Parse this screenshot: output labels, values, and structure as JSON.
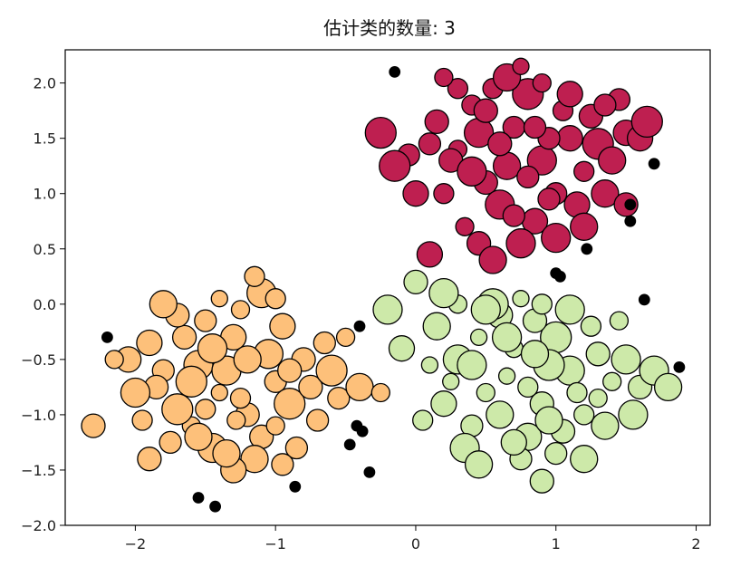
{
  "chart_data": {
    "type": "scatter",
    "title": "估计类的数量: 3",
    "xlabel": "",
    "ylabel": "",
    "xlim": [
      -2.5,
      2.1
    ],
    "ylim": [
      -2.0,
      2.3
    ],
    "x_ticks": [
      -2,
      -1,
      0,
      1,
      2
    ],
    "x_tick_labels": [
      "−2",
      "−1",
      "0",
      "1",
      "2"
    ],
    "y_ticks": [
      -2.0,
      -1.5,
      -1.0,
      -0.5,
      0.0,
      0.5,
      1.0,
      1.5,
      2.0
    ],
    "y_tick_labels": [
      "−2.0",
      "−1.5",
      "−1.0",
      "−0.5",
      "0.0",
      "0.5",
      "1.0",
      "1.5",
      "2.0"
    ],
    "grid": false,
    "legend": "none",
    "series": [
      {
        "color": "#fdc07a",
        "points": [
          [
            -1.55,
            -0.55
          ],
          [
            -1.4,
            -0.8
          ],
          [
            -1.2,
            -1.0
          ],
          [
            -1.0,
            -0.7
          ],
          [
            -0.8,
            -0.5
          ],
          [
            -1.3,
            -0.3
          ],
          [
            -1.6,
            -1.1
          ],
          [
            -1.8,
            -0.6
          ],
          [
            -1.1,
            -1.2
          ],
          [
            -0.9,
            -0.9
          ],
          [
            -1.45,
            -1.3
          ],
          [
            -1.25,
            -0.05
          ],
          [
            -1.7,
            -0.95
          ],
          [
            -1.05,
            -0.45
          ],
          [
            -0.75,
            -0.75
          ],
          [
            -1.35,
            -0.6
          ],
          [
            -1.5,
            -0.15
          ],
          [
            -1.9,
            -0.35
          ],
          [
            -0.55,
            -0.85
          ],
          [
            -1.15,
            -1.4
          ],
          [
            -1.65,
            -0.3
          ],
          [
            -0.95,
            -0.2
          ],
          [
            -1.75,
            -1.25
          ],
          [
            -1.28,
            -1.05
          ],
          [
            -0.65,
            -0.35
          ],
          [
            -1.85,
            -0.75
          ],
          [
            -1.4,
            0.05
          ],
          [
            -1.0,
            -1.1
          ],
          [
            -0.85,
            -1.3
          ],
          [
            -1.6,
            -0.7
          ],
          [
            -1.2,
            -0.5
          ],
          [
            -1.5,
            -0.95
          ],
          [
            -0.7,
            -1.05
          ],
          [
            -1.95,
            -1.05
          ],
          [
            -1.3,
            -1.5
          ],
          [
            -0.6,
            -0.6
          ],
          [
            -1.1,
            0.1
          ],
          [
            -1.7,
            -0.1
          ],
          [
            -0.4,
            -0.75
          ],
          [
            -2.05,
            -0.5
          ],
          [
            -1.45,
            -0.4
          ],
          [
            -0.9,
            -0.6
          ],
          [
            -1.25,
            -0.85
          ],
          [
            -1.55,
            -1.2
          ],
          [
            -1.8,
            0.0
          ],
          [
            -1.0,
            0.05
          ],
          [
            -2.3,
            -1.1
          ],
          [
            -2.15,
            -0.5
          ],
          [
            -0.25,
            -0.8
          ],
          [
            -1.15,
            0.25
          ],
          [
            -0.5,
            -0.3
          ],
          [
            -1.35,
            -1.35
          ],
          [
            -1.9,
            -1.4
          ],
          [
            -0.95,
            -1.45
          ],
          [
            -2.0,
            -0.8
          ]
        ]
      },
      {
        "color": "#cde9a9",
        "points": [
          [
            0.3,
            -0.5
          ],
          [
            0.5,
            -0.8
          ],
          [
            0.7,
            -0.4
          ],
          [
            0.9,
            -0.9
          ],
          [
            1.1,
            -0.6
          ],
          [
            0.4,
            -1.1
          ],
          [
            0.6,
            -0.1
          ],
          [
            0.8,
            -1.2
          ],
          [
            1.0,
            -0.3
          ],
          [
            1.2,
            -1.0
          ],
          [
            0.2,
            -0.9
          ],
          [
            0.45,
            -0.3
          ],
          [
            0.65,
            -0.65
          ],
          [
            0.85,
            -0.15
          ],
          [
            1.05,
            -1.15
          ],
          [
            1.3,
            -0.45
          ],
          [
            0.35,
            -1.3
          ],
          [
            0.75,
            -1.4
          ],
          [
            0.95,
            -0.55
          ],
          [
            1.15,
            -0.8
          ],
          [
            0.15,
            -0.2
          ],
          [
            0.55,
            0.0
          ],
          [
            1.4,
            -0.7
          ],
          [
            0.25,
            -0.7
          ],
          [
            0.6,
            -1.0
          ],
          [
            0.9,
            0.0
          ],
          [
            1.25,
            -0.2
          ],
          [
            0.4,
            -0.55
          ],
          [
            0.8,
            -0.75
          ],
          [
            1.0,
            -1.35
          ],
          [
            0.5,
            -0.05
          ],
          [
            1.35,
            -1.1
          ],
          [
            0.1,
            -0.55
          ],
          [
            0.7,
            -1.25
          ],
          [
            1.5,
            -0.5
          ],
          [
            0.3,
            0.0
          ],
          [
            0.85,
            -0.45
          ],
          [
            1.1,
            -0.05
          ],
          [
            0.05,
            -1.05
          ],
          [
            1.6,
            -0.75
          ],
          [
            1.2,
            -1.4
          ],
          [
            0.45,
            -1.45
          ],
          [
            0.2,
            0.1
          ],
          [
            1.45,
            -0.15
          ],
          [
            0.95,
            -1.05
          ],
          [
            0.65,
            -0.3
          ],
          [
            1.7,
            -0.6
          ],
          [
            -0.1,
            -0.4
          ],
          [
            0.0,
            0.2
          ],
          [
            1.55,
            -1.0
          ],
          [
            0.75,
            0.05
          ],
          [
            1.3,
            -0.85
          ],
          [
            1.8,
            -0.75
          ],
          [
            0.9,
            -1.6
          ],
          [
            -0.2,
            -0.05
          ]
        ]
      },
      {
        "color": "#be1f50",
        "points": [
          [
            0.3,
            1.4
          ],
          [
            0.5,
            1.1
          ],
          [
            0.7,
            1.6
          ],
          [
            0.9,
            1.3
          ],
          [
            1.1,
            1.5
          ],
          [
            0.4,
            1.8
          ],
          [
            0.6,
            0.9
          ],
          [
            0.8,
            1.9
          ],
          [
            1.0,
            1.0
          ],
          [
            1.2,
            1.2
          ],
          [
            0.2,
            1.0
          ],
          [
            0.45,
            1.55
          ],
          [
            0.65,
            1.25
          ],
          [
            0.85,
            0.75
          ],
          [
            1.05,
            1.75
          ],
          [
            1.3,
            1.45
          ],
          [
            0.35,
            0.7
          ],
          [
            0.75,
            0.55
          ],
          [
            0.95,
            1.5
          ],
          [
            1.15,
            0.9
          ],
          [
            0.15,
            1.65
          ],
          [
            0.55,
            1.95
          ],
          [
            1.4,
            1.3
          ],
          [
            0.25,
            1.3
          ],
          [
            0.6,
            1.45
          ],
          [
            0.9,
            2.0
          ],
          [
            1.25,
            1.7
          ],
          [
            0.4,
            1.2
          ],
          [
            0.8,
            1.15
          ],
          [
            1.0,
            0.6
          ],
          [
            0.5,
            1.75
          ],
          [
            1.35,
            1.0
          ],
          [
            0.1,
            1.45
          ],
          [
            0.7,
            0.8
          ],
          [
            1.5,
            1.55
          ],
          [
            0.3,
            1.95
          ],
          [
            0.85,
            1.6
          ],
          [
            1.1,
            1.9
          ],
          [
            -0.05,
            1.35
          ],
          [
            1.6,
            1.5
          ],
          [
            1.2,
            0.7
          ],
          [
            0.45,
            0.55
          ],
          [
            0.2,
            2.05
          ],
          [
            1.45,
            1.85
          ],
          [
            0.95,
            0.95
          ],
          [
            0.65,
            2.05
          ],
          [
            -0.25,
            1.55
          ],
          [
            1.5,
            0.9
          ],
          [
            0.1,
            0.45
          ],
          [
            0.55,
            0.4
          ],
          [
            1.35,
            1.8
          ],
          [
            0.0,
            1.0
          ],
          [
            0.75,
            2.15
          ],
          [
            -0.15,
            1.25
          ],
          [
            1.65,
            1.65
          ]
        ]
      },
      {
        "color": "#000000",
        "points": [
          [
            -2.2,
            -0.3
          ],
          [
            -1.55,
            -1.75
          ],
          [
            -1.43,
            -1.83
          ],
          [
            -0.86,
            -1.65
          ],
          [
            -0.33,
            -1.52
          ],
          [
            -0.47,
            -1.27
          ],
          [
            -0.42,
            -1.1
          ],
          [
            -0.38,
            -1.15
          ],
          [
            -0.4,
            -0.2
          ],
          [
            -0.15,
            2.1
          ],
          [
            1.7,
            1.27
          ],
          [
            1.53,
            0.9
          ],
          [
            1.53,
            0.75
          ],
          [
            1.22,
            0.5
          ],
          [
            1.0,
            0.28
          ],
          [
            1.03,
            0.25
          ],
          [
            1.63,
            0.04
          ],
          [
            1.88,
            -0.57
          ]
        ]
      }
    ]
  }
}
